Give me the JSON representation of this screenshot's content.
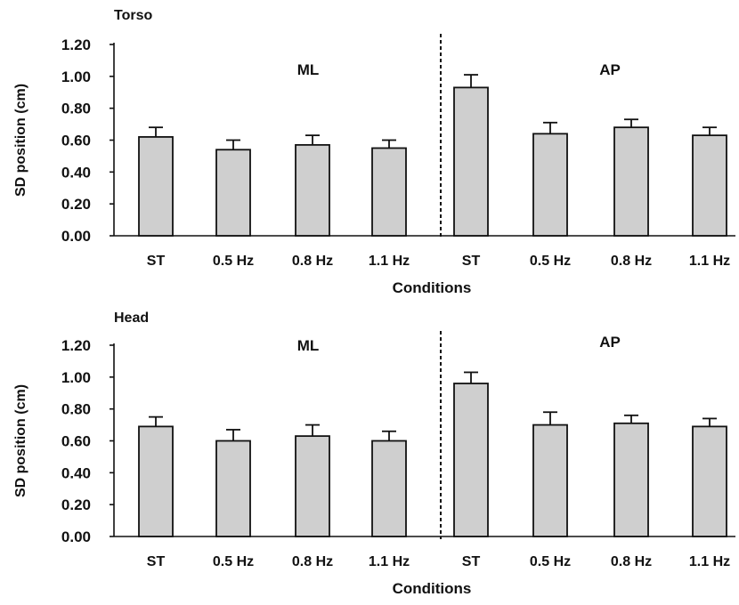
{
  "chart_data": [
    {
      "type": "bar",
      "panel_label": "Torso",
      "ylabel": "SD position (cm)",
      "xlabel": "Conditions",
      "ylim": [
        0,
        1.2
      ],
      "yticks": [
        "0.00",
        "0.20",
        "0.40",
        "0.60",
        "0.80",
        "1.00",
        "1.20"
      ],
      "group_labels": [
        "ML",
        "AP"
      ],
      "categories": [
        "ST",
        "0.5 Hz",
        "0.8 Hz",
        "1.1 Hz",
        "ST",
        "0.5 Hz",
        "0.8 Hz",
        "1.1 Hz"
      ],
      "values": [
        0.62,
        0.54,
        0.57,
        0.55,
        0.93,
        0.64,
        0.68,
        0.63
      ],
      "errors": [
        0.06,
        0.06,
        0.06,
        0.05,
        0.08,
        0.07,
        0.05,
        0.05
      ]
    },
    {
      "type": "bar",
      "panel_label": "Head",
      "ylabel": "SD position (cm)",
      "xlabel": "Conditions",
      "ylim": [
        0,
        1.2
      ],
      "yticks": [
        "0.00",
        "0.20",
        "0.40",
        "0.60",
        "0.80",
        "1.00",
        "1.20"
      ],
      "group_labels": [
        "ML",
        "AP"
      ],
      "categories": [
        "ST",
        "0.5 Hz",
        "0.8 Hz",
        "1.1 Hz",
        "ST",
        "0.5 Hz",
        "0.8 Hz",
        "1.1 Hz"
      ],
      "values": [
        0.69,
        0.6,
        0.63,
        0.6,
        0.96,
        0.7,
        0.71,
        0.69
      ],
      "errors": [
        0.06,
        0.07,
        0.07,
        0.06,
        0.07,
        0.08,
        0.05,
        0.05
      ]
    }
  ]
}
